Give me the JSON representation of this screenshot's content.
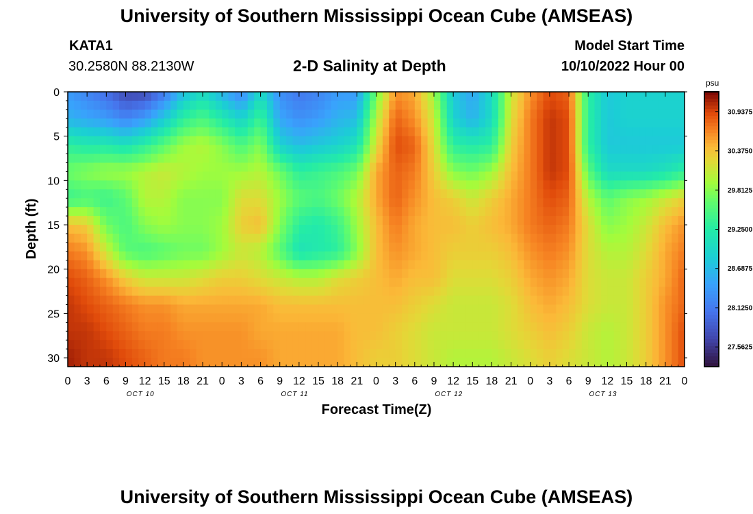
{
  "header": {
    "title": "University of Southern Mississippi Ocean Cube (AMSEAS)",
    "station": "KATA1",
    "coords": "30.2580N  88.2130W",
    "subtitle": "2-D Salinity at Depth",
    "model_start_label": "Model Start Time",
    "model_start_value": "10/10/2022 Hour 00"
  },
  "footer": {
    "title": "University of Southern Mississippi Ocean Cube (AMSEAS)"
  },
  "chart_data": {
    "type": "heatmap",
    "title": "2-D Salinity at Depth",
    "xlabel": "Forecast Time(Z)",
    "ylabel": "Depth (ft)",
    "x_range_hours": [
      0,
      96
    ],
    "y_range_ft": [
      0,
      31
    ],
    "y_inverted": true,
    "x_ticks": [
      "0",
      "3",
      "6",
      "9",
      "12",
      "15",
      "18",
      "21",
      "0",
      "3",
      "6",
      "9",
      "12",
      "15",
      "18",
      "21",
      "0",
      "3",
      "6",
      "9",
      "12",
      "15",
      "18",
      "21",
      "0",
      "3",
      "6",
      "9",
      "12",
      "15",
      "18",
      "21",
      "0"
    ],
    "y_ticks": [
      0,
      5,
      10,
      15,
      20,
      25,
      30
    ],
    "day_labels": [
      {
        "label": "OCT 10",
        "hour": 11
      },
      {
        "label": "OCT 11",
        "hour": 35
      },
      {
        "label": "OCT 12",
        "hour": 59
      },
      {
        "label": "OCT 13",
        "hour": 83
      }
    ],
    "colorbar": {
      "unit": "psu",
      "labels": [
        "30.9375",
        "30.3750",
        "29.8125",
        "29.2500",
        "28.6875",
        "28.1250",
        "27.5625"
      ],
      "range": [
        27.28,
        31.22
      ],
      "position": "right"
    },
    "colors": {
      "low": "#30123b",
      "high": "#7a0403"
    },
    "depths_ft": [
      0,
      3,
      6,
      9,
      12,
      15,
      18,
      21,
      24,
      27,
      30
    ],
    "hours": [
      0,
      3,
      6,
      9,
      12,
      15,
      18,
      21,
      24,
      27,
      30,
      33,
      36,
      39,
      42,
      45,
      48,
      51,
      54,
      57,
      60,
      63,
      66,
      69,
      72,
      75,
      78,
      81,
      84,
      87,
      90,
      93,
      96
    ],
    "values": [
      [
        28.4,
        28.2,
        28.0,
        27.7,
        27.7,
        28.1,
        28.7,
        29.0,
        28.6,
        28.2,
        29.0,
        28.3,
        28.1,
        28.2,
        28.4,
        28.4,
        29.7,
        30.6,
        30.5,
        29.9,
        28.8,
        28.5,
        29.0,
        30.1,
        30.6,
        30.9,
        30.8,
        29.3,
        28.8,
        28.9,
        28.9,
        28.9,
        28.9
      ],
      [
        28.6,
        28.5,
        28.4,
        28.2,
        28.4,
        28.8,
        29.3,
        29.5,
        29.2,
        28.9,
        29.4,
        28.5,
        28.3,
        28.4,
        28.6,
        28.7,
        30.0,
        30.8,
        30.6,
        30.1,
        28.9,
        28.6,
        29.0,
        30.2,
        30.7,
        31.0,
        30.9,
        29.3,
        28.8,
        28.9,
        28.9,
        28.9,
        28.9
      ],
      [
        29.3,
        29.2,
        29.2,
        29.1,
        29.3,
        29.6,
        29.9,
        30.0,
        29.8,
        29.5,
        29.8,
        28.9,
        28.7,
        28.8,
        28.9,
        29.1,
        30.2,
        30.9,
        30.8,
        30.2,
        29.3,
        29.2,
        29.3,
        30.3,
        30.7,
        31.0,
        30.9,
        29.3,
        28.8,
        28.8,
        28.8,
        28.8,
        28.8
      ],
      [
        29.7,
        29.8,
        29.9,
        29.9,
        30.0,
        30.1,
        30.0,
        29.9,
        29.9,
        29.9,
        30.0,
        29.7,
        29.3,
        29.4,
        29.5,
        29.7,
        30.5,
        30.8,
        30.7,
        30.3,
        29.8,
        29.7,
        29.9,
        30.4,
        30.7,
        31.0,
        30.9,
        29.6,
        29.0,
        29.0,
        29.0,
        29.1,
        29.3
      ],
      [
        29.4,
        29.5,
        29.4,
        29.6,
        30.0,
        30.0,
        29.8,
        29.8,
        29.8,
        30.2,
        30.2,
        29.9,
        29.6,
        29.5,
        29.7,
        30.0,
        30.5,
        30.8,
        30.6,
        30.4,
        30.3,
        30.1,
        30.3,
        30.5,
        30.7,
        30.9,
        30.8,
        30.0,
        29.6,
        29.8,
        29.9,
        30.1,
        30.3
      ],
      [
        30.4,
        30.3,
        29.7,
        29.5,
        29.8,
        29.9,
        29.8,
        29.8,
        29.9,
        30.3,
        30.4,
        29.8,
        29.3,
        29.2,
        29.4,
        29.9,
        30.4,
        30.7,
        30.5,
        30.4,
        30.4,
        30.3,
        30.4,
        30.5,
        30.7,
        30.8,
        30.7,
        30.2,
        29.8,
        29.9,
        30.1,
        30.4,
        30.6
      ],
      [
        30.7,
        30.6,
        30.1,
        29.6,
        29.5,
        29.6,
        29.7,
        29.7,
        29.9,
        30.1,
        30.0,
        29.6,
        29.1,
        29.2,
        29.3,
        29.8,
        30.4,
        30.6,
        30.5,
        30.4,
        30.3,
        30.3,
        30.3,
        30.4,
        30.6,
        30.7,
        30.6,
        30.2,
        30.0,
        30.0,
        30.2,
        30.5,
        30.7
      ],
      [
        30.9,
        30.8,
        30.6,
        30.3,
        30.1,
        30.1,
        30.1,
        30.2,
        30.3,
        30.3,
        30.2,
        30.1,
        30.0,
        30.0,
        30.2,
        30.3,
        30.4,
        30.5,
        30.4,
        30.4,
        30.2,
        30.2,
        30.2,
        30.3,
        30.5,
        30.6,
        30.5,
        30.2,
        30.1,
        30.1,
        30.3,
        30.5,
        30.8
      ],
      [
        31.0,
        30.9,
        30.8,
        30.7,
        30.6,
        30.6,
        30.5,
        30.5,
        30.5,
        30.5,
        30.5,
        30.4,
        30.4,
        30.4,
        30.4,
        30.4,
        30.4,
        30.4,
        30.3,
        30.2,
        30.1,
        30.1,
        30.1,
        30.2,
        30.4,
        30.5,
        30.4,
        30.2,
        30.1,
        30.1,
        30.3,
        30.6,
        30.8
      ],
      [
        31.0,
        31.0,
        30.9,
        30.8,
        30.7,
        30.7,
        30.6,
        30.6,
        30.6,
        30.6,
        30.5,
        30.5,
        30.5,
        30.5,
        30.5,
        30.4,
        30.4,
        30.3,
        30.2,
        30.1,
        30.1,
        30.1,
        30.1,
        30.2,
        30.3,
        30.4,
        30.3,
        30.1,
        30.0,
        30.1,
        30.3,
        30.6,
        30.9
      ],
      [
        31.1,
        31.0,
        31.0,
        30.9,
        30.8,
        30.7,
        30.7,
        30.6,
        30.6,
        30.6,
        30.6,
        30.5,
        30.5,
        30.5,
        30.5,
        30.4,
        30.3,
        30.3,
        30.2,
        30.1,
        30.0,
        30.0,
        30.0,
        30.1,
        30.2,
        30.3,
        30.2,
        30.1,
        30.0,
        30.1,
        30.3,
        30.6,
        30.9
      ]
    ]
  }
}
